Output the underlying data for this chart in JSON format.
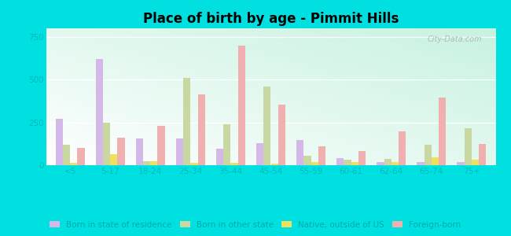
{
  "title": "Place of birth by age - Pimmit Hills",
  "categories": [
    "<5",
    "5-17",
    "18-24",
    "25-34",
    "35-44",
    "45-54",
    "55-59",
    "60-61",
    "62-64",
    "65-74",
    "75+"
  ],
  "series": {
    "Born in state of residence": [
      270,
      620,
      155,
      155,
      95,
      130,
      145,
      40,
      20,
      20,
      20
    ],
    "Born in other state": [
      120,
      250,
      25,
      510,
      240,
      460,
      55,
      30,
      35,
      120,
      215
    ],
    "Native, outside of US": [
      15,
      65,
      25,
      15,
      15,
      10,
      20,
      20,
      20,
      45,
      30
    ],
    "Foreign-born": [
      100,
      160,
      230,
      415,
      700,
      355,
      110,
      85,
      200,
      395,
      125
    ]
  },
  "colors": {
    "Born in state of residence": "#d4b8e8",
    "Born in other state": "#c8d8a0",
    "Native, outside of US": "#f0e060",
    "Foreign-born": "#f0b0b0"
  },
  "ylim": [
    0,
    800
  ],
  "yticks": [
    0,
    250,
    500,
    750
  ],
  "outer_background": "#00e0e0",
  "bar_width": 0.18,
  "legend_labels": [
    "Born in state of residence",
    "Born in other state",
    "Native, outside of US",
    "Foreign-born"
  ]
}
